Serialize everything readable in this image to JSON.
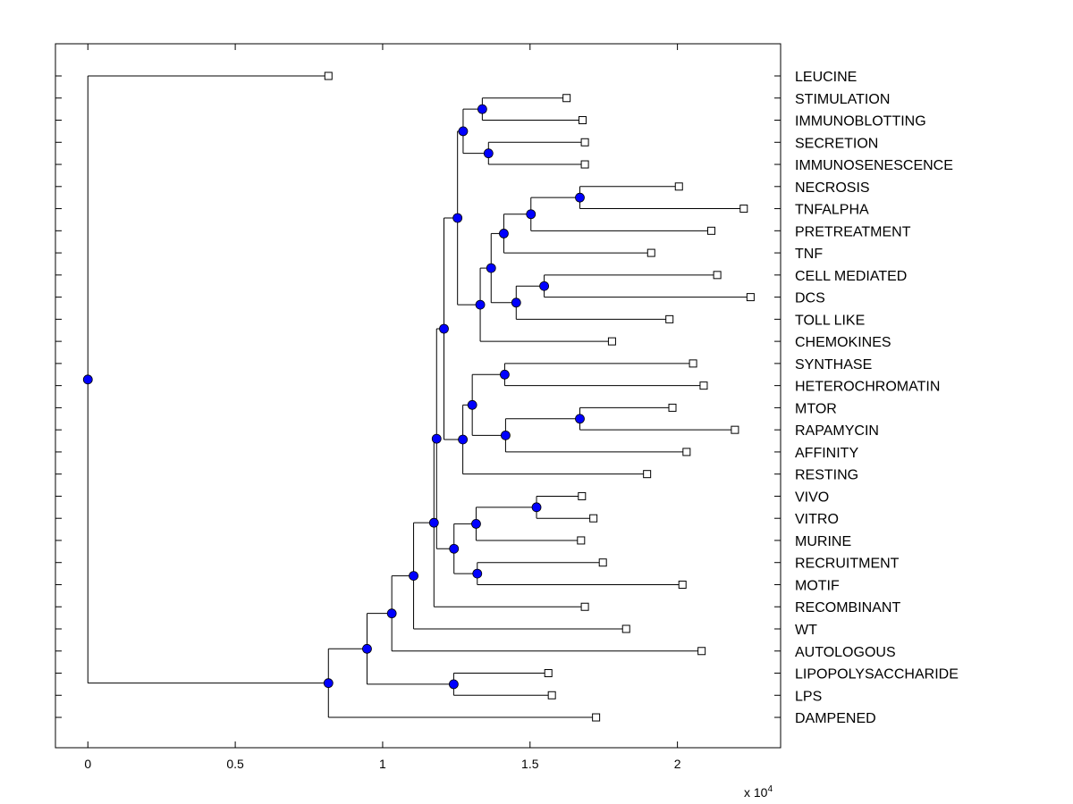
{
  "chart_data": {
    "type": "dendrogram",
    "orientation": "horizontal",
    "xlim": [
      -0.11,
      2.35
    ],
    "x_ticks": [
      0,
      0.5,
      1,
      1.5,
      2
    ],
    "x_tick_labels": [
      "0",
      "0.5",
      "1",
      "1.5",
      "2"
    ],
    "x_multiplier_label": "x 10",
    "x_multiplier_exponent": "4",
    "node_color": "#0000ff",
    "leaf_marker_color": "#ffffff",
    "labels": [
      "LEUCINE",
      "STIMULATION",
      "IMMUNOBLOTTING",
      "SECRETION",
      "IMMUNOSENESCENCE",
      "NECROSIS",
      "TNFALPHA",
      "PRETREATMENT",
      "TNF",
      "CELL MEDIATED",
      "DCS",
      "TOLL LIKE",
      "CHEMOKINES",
      "SYNTHASE",
      "HETEROCHROMATIN",
      "MTOR",
      "RAPAMYCIN",
      "AFFINITY",
      "RESTING",
      "VIVO",
      "VITRO",
      "MURINE",
      "RECRUITMENT",
      "MOTIF",
      "RECOMBINANT",
      "WT",
      "AUTOLOGOUS",
      "LIPOPOLYSACCHARIDE",
      "LPS",
      "DAMPENED"
    ],
    "leaf_x": [
      0.816,
      1.624,
      1.678,
      1.686,
      1.686,
      2.005,
      2.225,
      2.115,
      1.911,
      2.135,
      2.248,
      1.973,
      1.778,
      2.053,
      2.089,
      1.983,
      2.195,
      2.031,
      1.897,
      1.676,
      1.715,
      1.673,
      1.747,
      2.017,
      1.686,
      1.826,
      2.082,
      1.562,
      1.574,
      1.724
    ],
    "nodes": [
      {
        "id": "n_stim_immuno",
        "x": 1.338,
        "children": [
          "L1",
          "L2"
        ]
      },
      {
        "id": "n_secr_immunosen",
        "x": 1.359,
        "children": [
          "L3",
          "L4"
        ]
      },
      {
        "id": "n_top4",
        "x": 1.273,
        "children": [
          "n_stim_immuno",
          "n_secr_immunosen"
        ]
      },
      {
        "id": "n_necr_tnfa",
        "x": 1.669,
        "children": [
          "L5",
          "L6"
        ]
      },
      {
        "id": "n_pretreat",
        "x": 1.503,
        "children": [
          "n_necr_tnfa",
          "L7"
        ]
      },
      {
        "id": "n_tnf",
        "x": 1.411,
        "children": [
          "n_pretreat",
          "L8"
        ]
      },
      {
        "id": "n_cell_dcs",
        "x": 1.548,
        "children": [
          "L9",
          "L10"
        ]
      },
      {
        "id": "n_toll",
        "x": 1.453,
        "children": [
          "n_cell_dcs",
          "L11"
        ]
      },
      {
        "id": "n_inflam",
        "x": 1.368,
        "children": [
          "n_tnf",
          "n_toll"
        ]
      },
      {
        "id": "n_chemo",
        "x": 1.331,
        "children": [
          "n_inflam",
          "L12"
        ]
      },
      {
        "id": "n_upper",
        "x": 1.254,
        "children": [
          "n_top4",
          "n_chemo"
        ]
      },
      {
        "id": "n_synth_hetero",
        "x": 1.414,
        "children": [
          "L13",
          "L14"
        ]
      },
      {
        "id": "n_mtor_rapa",
        "x": 1.669,
        "children": [
          "L15",
          "L16"
        ]
      },
      {
        "id": "n_affinity",
        "x": 1.417,
        "children": [
          "n_mtor_rapa",
          "L17"
        ]
      },
      {
        "id": "n_mid4",
        "x": 1.304,
        "children": [
          "n_synth_hetero",
          "n_affinity"
        ]
      },
      {
        "id": "n_resting",
        "x": 1.272,
        "children": [
          "n_mid4",
          "L18"
        ]
      },
      {
        "id": "n_upper_big",
        "x": 1.208,
        "children": [
          "n_upper",
          "n_resting"
        ]
      },
      {
        "id": "n_vivo_vitro",
        "x": 1.522,
        "children": [
          "L19",
          "L20"
        ]
      },
      {
        "id": "n_murine",
        "x": 1.317,
        "children": [
          "n_vivo_vitro",
          "L21"
        ]
      },
      {
        "id": "n_recr_motif",
        "x": 1.321,
        "children": [
          "L22",
          "L23"
        ]
      },
      {
        "id": "n_lower4",
        "x": 1.242,
        "children": [
          "n_murine",
          "n_recr_motif"
        ]
      },
      {
        "id": "n_main",
        "x": 1.183,
        "children": [
          "n_upper_big",
          "n_lower4"
        ]
      },
      {
        "id": "n_recomb",
        "x": 1.174,
        "children": [
          "n_main",
          "L24"
        ]
      },
      {
        "id": "n_wt",
        "x": 1.105,
        "children": [
          "n_recomb",
          "L25"
        ]
      },
      {
        "id": "n_auto",
        "x": 1.031,
        "children": [
          "n_wt",
          "L26"
        ]
      },
      {
        "id": "n_lps",
        "x": 1.241,
        "children": [
          "L27",
          "L28"
        ]
      },
      {
        "id": "n_lower_main",
        "x": 0.947,
        "children": [
          "n_auto",
          "n_lps"
        ]
      },
      {
        "id": "n_dampened",
        "x": 0.816,
        "children": [
          "n_lower_main",
          "L29"
        ]
      },
      {
        "id": "n_root",
        "x": 0.0,
        "children": [
          "L0",
          "n_dampened"
        ]
      }
    ]
  }
}
